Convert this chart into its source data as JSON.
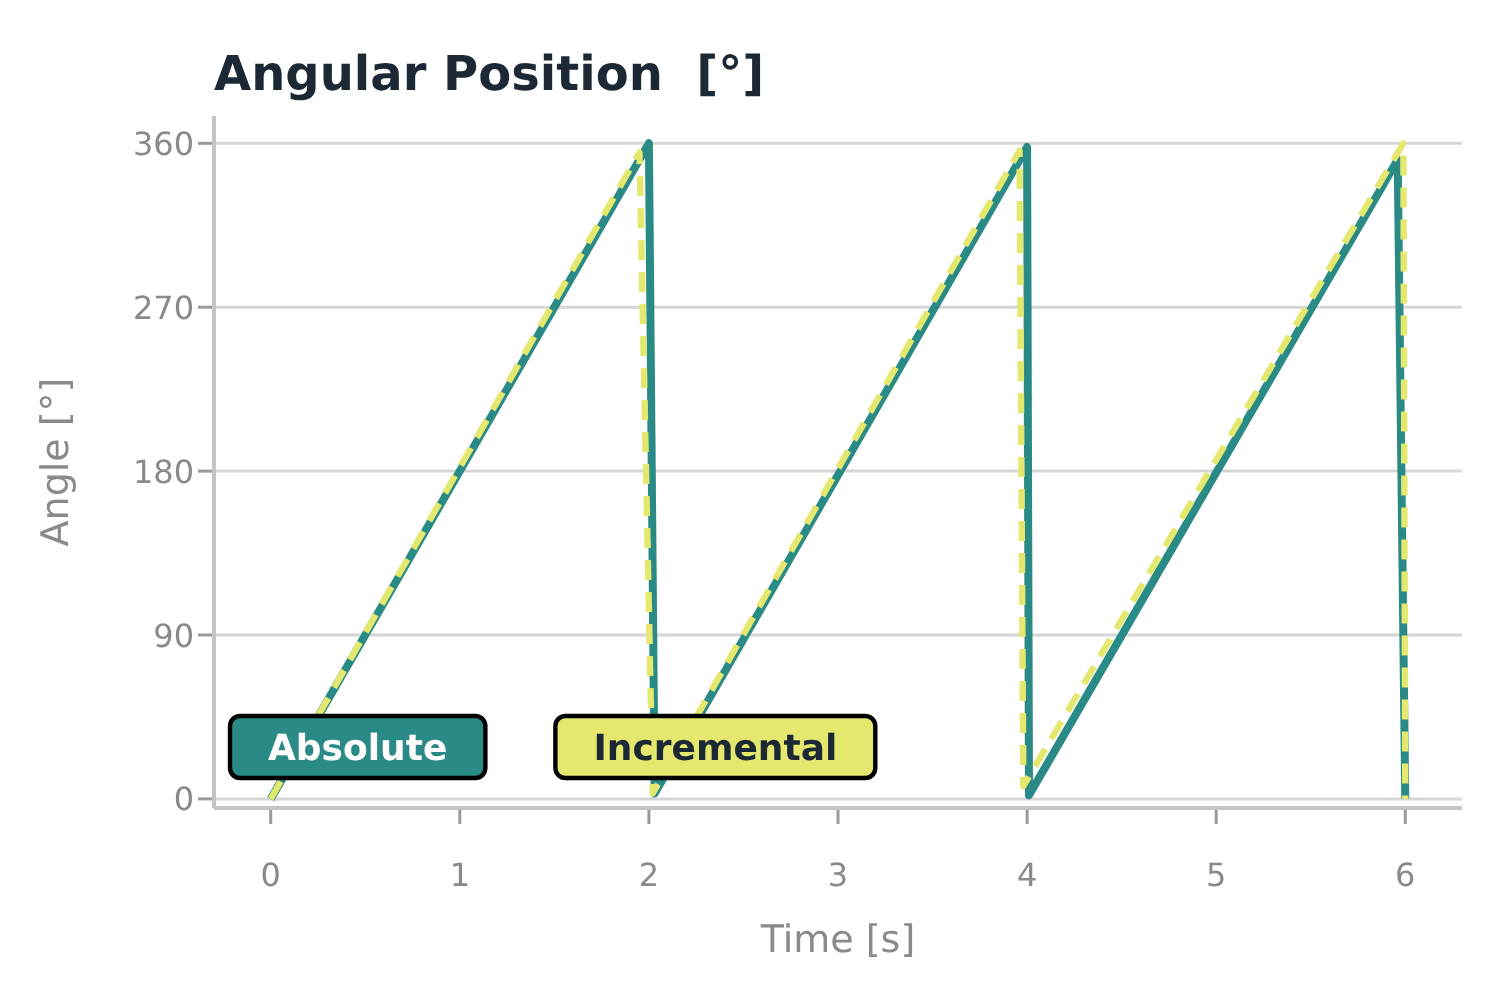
{
  "chart_data": {
    "type": "line",
    "title": "Angular Position  [°]",
    "xlabel": "Time [s]",
    "ylabel": "Angle [°]",
    "xlim": [
      -0.3,
      6.3
    ],
    "xticks": [
      0,
      1,
      2,
      3,
      4,
      5,
      6
    ],
    "ylim": [
      -5,
      375
    ],
    "yticks": [
      0,
      90,
      180,
      270,
      360
    ],
    "grid": "y",
    "legend": "bottom left",
    "series": [
      {
        "name": "Absolute",
        "color": "#2a8a86",
        "line_style": "solid",
        "x": [
          0,
          2,
          2.03,
          4,
          4.01,
          5.96,
          6
        ],
        "values": [
          0,
          360,
          3,
          358,
          2,
          351,
          0
        ]
      },
      {
        "name": "Incremental",
        "color": "#e4e86e",
        "line_style": "dashed",
        "x": [
          0,
          1.95,
          2.02,
          3.96,
          3.98,
          5.99,
          6
        ],
        "values": [
          0,
          355,
          3,
          356,
          7,
          360,
          0
        ]
      }
    ]
  }
}
